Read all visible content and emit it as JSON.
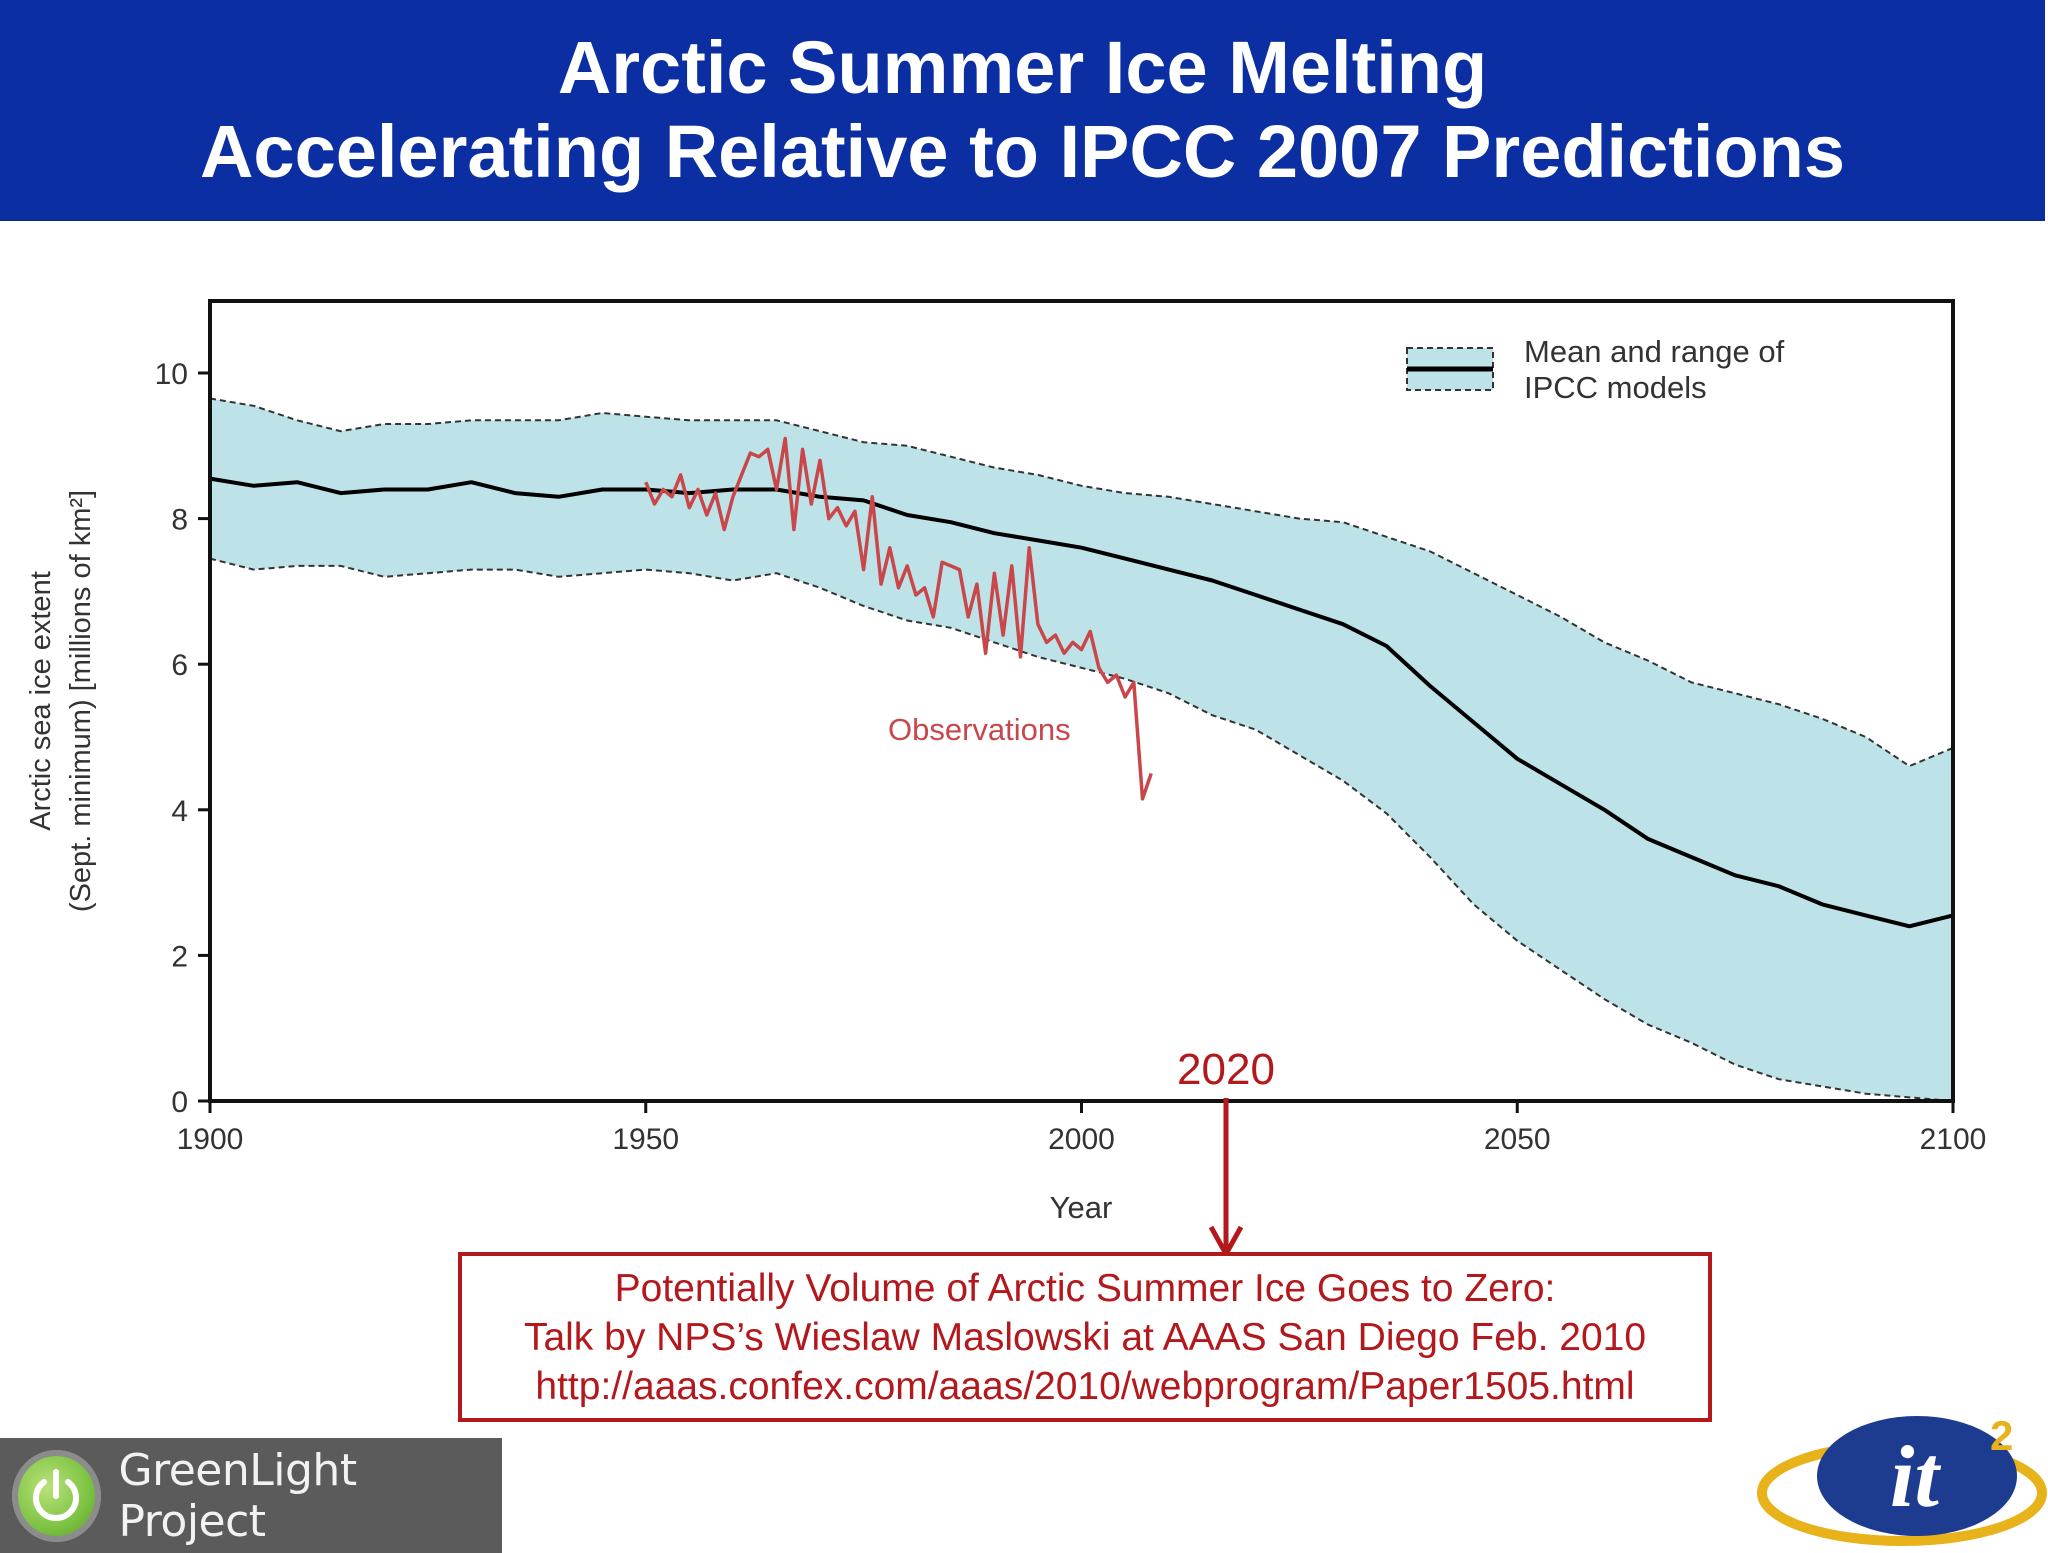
{
  "header": {
    "title_line1": "Arctic Summer Ice Melting",
    "title_line2": "Accelerating Relative to IPCC 2007 Predictions"
  },
  "chart_data": {
    "type": "line",
    "xlabel": "Year",
    "ylabel_line1": "Arctic sea ice extent",
    "ylabel_line2": "(Sept. minimum) [millions of km²]",
    "xlim": [
      1900,
      2100
    ],
    "ylim": [
      0,
      11
    ],
    "x_ticks": [
      "1900",
      "1950",
      "2000",
      "2050",
      "2100"
    ],
    "y_ticks": [
      "0",
      "2",
      "4",
      "6",
      "8",
      "10"
    ],
    "grid": false,
    "legend": {
      "position": "top-right",
      "label_line1": "Mean and range of",
      "label_line2": "IPCC models"
    },
    "series": [
      {
        "name": "Mean and range of IPCC models",
        "color": "#000000",
        "band_color": "#bde3e8",
        "x": [
          1900,
          1905,
          1910,
          1915,
          1920,
          1925,
          1930,
          1935,
          1940,
          1945,
          1950,
          1955,
          1960,
          1965,
          1970,
          1975,
          1980,
          1985,
          1990,
          1995,
          2000,
          2005,
          2010,
          2015,
          2020,
          2025,
          2030,
          2035,
          2040,
          2045,
          2050,
          2055,
          2060,
          2065,
          2070,
          2075,
          2080,
          2085,
          2090,
          2095,
          2100
        ],
        "mean": [
          8.55,
          8.45,
          8.5,
          8.35,
          8.4,
          8.4,
          8.5,
          8.35,
          8.3,
          8.4,
          8.4,
          8.35,
          8.4,
          8.4,
          8.3,
          8.25,
          8.05,
          7.95,
          7.8,
          7.7,
          7.6,
          7.45,
          7.3,
          7.15,
          6.95,
          6.75,
          6.55,
          6.25,
          5.7,
          5.2,
          4.7,
          4.35,
          4.0,
          3.6,
          3.35,
          3.1,
          2.95,
          2.7,
          2.55,
          2.4,
          2.55
        ],
        "upper": [
          9.65,
          9.55,
          9.35,
          9.2,
          9.3,
          9.3,
          9.35,
          9.35,
          9.35,
          9.45,
          9.4,
          9.35,
          9.35,
          9.35,
          9.2,
          9.05,
          9.0,
          8.85,
          8.7,
          8.6,
          8.45,
          8.35,
          8.3,
          8.2,
          8.1,
          8.0,
          7.95,
          7.75,
          7.55,
          7.25,
          6.95,
          6.65,
          6.3,
          6.05,
          5.75,
          5.6,
          5.45,
          5.25,
          5.0,
          4.6,
          4.85
        ],
        "lower": [
          7.45,
          7.3,
          7.35,
          7.35,
          7.2,
          7.25,
          7.3,
          7.3,
          7.2,
          7.25,
          7.3,
          7.25,
          7.15,
          7.25,
          7.05,
          6.8,
          6.6,
          6.5,
          6.3,
          6.1,
          5.95,
          5.8,
          5.6,
          5.3,
          5.1,
          4.75,
          4.4,
          3.95,
          3.35,
          2.7,
          2.2,
          1.8,
          1.4,
          1.05,
          0.8,
          0.5,
          0.3,
          0.2,
          0.1,
          0.05,
          0.0
        ]
      },
      {
        "name": "Observations",
        "color": "#c9474a",
        "x": [
          1950,
          1951,
          1952,
          1953,
          1954,
          1955,
          1956,
          1957,
          1958,
          1959,
          1960,
          1961,
          1962,
          1963,
          1964,
          1965,
          1966,
          1967,
          1968,
          1969,
          1970,
          1971,
          1972,
          1973,
          1974,
          1975,
          1976,
          1977,
          1978,
          1979,
          1980,
          1981,
          1982,
          1983,
          1984,
          1985,
          1986,
          1987,
          1988,
          1989,
          1990,
          1991,
          1992,
          1993,
          1994,
          1995,
          1996,
          1997,
          1998,
          1999,
          2000,
          2001,
          2002,
          2003,
          2004,
          2005,
          2006,
          2007,
          2008
        ],
        "values": [
          8.5,
          8.2,
          8.4,
          8.3,
          8.6,
          8.15,
          8.4,
          8.05,
          8.35,
          7.85,
          8.3,
          8.6,
          8.9,
          8.85,
          8.95,
          8.4,
          9.1,
          7.85,
          8.95,
          8.2,
          8.8,
          8.0,
          8.15,
          7.9,
          8.1,
          7.3,
          8.3,
          7.1,
          7.6,
          7.05,
          7.35,
          6.95,
          7.05,
          6.65,
          7.4,
          7.35,
          7.3,
          6.65,
          7.1,
          6.15,
          7.25,
          6.4,
          7.35,
          6.1,
          7.6,
          6.55,
          6.3,
          6.4,
          6.15,
          6.3,
          6.2,
          6.45,
          5.95,
          5.75,
          5.85,
          5.55,
          5.75,
          4.15,
          4.5
        ]
      }
    ],
    "annotations": {
      "observations_label": "Observations",
      "year_marker": "2020"
    }
  },
  "note": {
    "line1": "Potentially Volume of Arctic Summer Ice Goes to Zero:",
    "line2": "Talk by NPS’s Wieslaw Maslowski at AAAS San Diego Feb. 2010",
    "line3": "http://aaas.confex.com/aaas/2010/webprogram/Paper1505.html"
  },
  "logos": {
    "greenlight_label": "GreenLight Project",
    "it2_wordmark": "it",
    "it2_superscript": "2"
  },
  "colors": {
    "banner": "#0b2fa3",
    "accent_red": "#b3181c",
    "observation_red": "#c9474a",
    "band_blue": "#bde3e8"
  }
}
